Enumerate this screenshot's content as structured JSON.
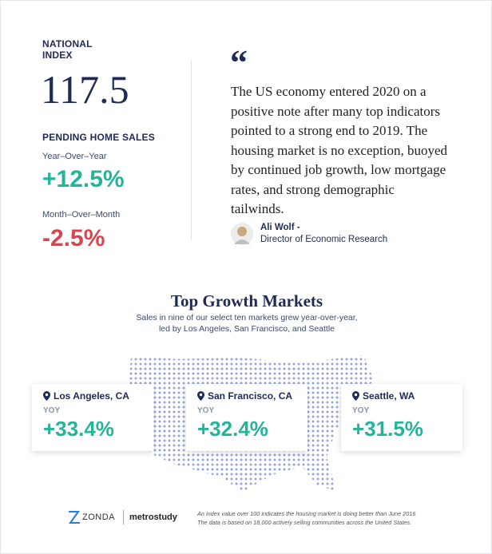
{
  "index": {
    "label": "NATIONAL INDEX",
    "value": "117.5"
  },
  "pending": {
    "title": "PENDING HOME SALES",
    "yoy_label": "Year–Over–Year",
    "yoy": "+12.5%",
    "mom_label": "Month–Over–Month",
    "mom": "-2.5%"
  },
  "quote": {
    "mark": "“",
    "text": "The US economy entered 2020 on a positive note after many top indicators pointed to a strong end to 2019. The housing market is no exception, buoyed by continued job growth, low mortgage rates, and strong demographic tailwinds.",
    "author": "Ali Wolf -",
    "role": "Director of Economic Research"
  },
  "markets": {
    "title": "Top Growth Markets",
    "subtitle": "Sales in nine of our select ten markets grew year-over-year, led by Los Angeles, San Francisco, and Seattle",
    "cards": [
      {
        "city": "Los Angeles, CA",
        "label": "YOY",
        "value": "+33.4%"
      },
      {
        "city": "San Francisco, CA",
        "label": "YOY",
        "value": "+32.4%"
      },
      {
        "city": "Seattle, WA",
        "label": "YOY",
        "value": "+31.5%"
      }
    ]
  },
  "footer": {
    "brand1": "ZONDA",
    "brand2": "metrostudy",
    "note": [
      "An index value over 100 indicates the housing market is doing better than June 2016",
      "The data is based on 18,000 actively selling communities across the United States."
    ]
  }
}
